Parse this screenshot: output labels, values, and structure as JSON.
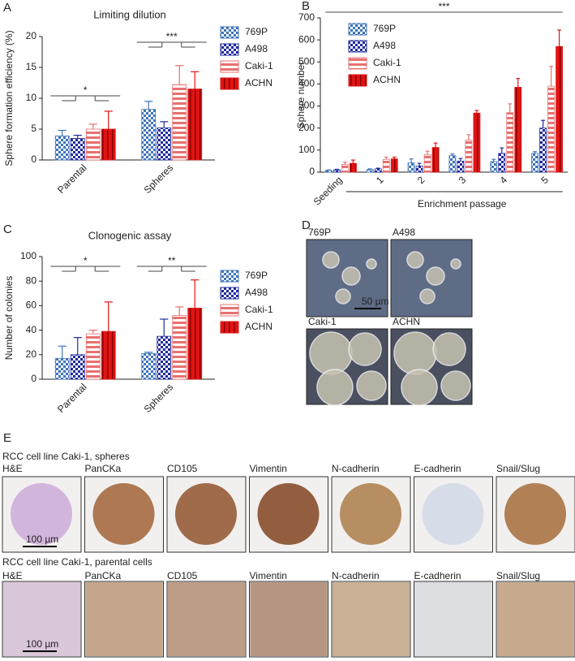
{
  "chart_data": [
    {
      "type": "bar",
      "panel": "A",
      "title": "Limiting dilution",
      "ylabel": "Sphere formation efficiency (%)",
      "categories": [
        "Parental",
        "Spheres"
      ],
      "series": [
        {
          "name": "769P",
          "color": "#3f74b8",
          "hatch": "checker",
          "values": [
            3.9,
            8.2
          ],
          "errors": [
            0.9,
            1.3
          ]
        },
        {
          "name": "A498",
          "color": "#1f2a9e",
          "hatch": "checker",
          "values": [
            3.5,
            5.2
          ],
          "errors": [
            0.5,
            1.0
          ]
        },
        {
          "name": "Caki-1",
          "color": "#e8706f",
          "hatch": "horizontal",
          "values": [
            5.0,
            12.2
          ],
          "errors": [
            0.8,
            3.1
          ]
        },
        {
          "name": "ACHN",
          "color": "#e01414",
          "hatch": "vertical",
          "values": [
            5.0,
            11.5
          ],
          "errors": [
            2.9,
            2.8
          ]
        }
      ],
      "ylim": [
        0,
        20
      ],
      "yticks": [
        0,
        5,
        10,
        15,
        20
      ],
      "annotations": [
        "*",
        "***"
      ]
    },
    {
      "type": "bar",
      "panel": "B",
      "ylabel": "Sphere number",
      "xlabel": "Enrichment passage",
      "categories": [
        "Seeding",
        "1",
        "2",
        "3",
        "4",
        "5"
      ],
      "series": [
        {
          "name": "769P",
          "color": "#3f74b8",
          "hatch": "checker",
          "values": [
            8,
            12,
            42,
            75,
            48,
            85
          ],
          "errors": [
            2,
            3,
            18,
            8,
            10,
            8
          ]
        },
        {
          "name": "A498",
          "color": "#1f2a9e",
          "hatch": "checker",
          "values": [
            10,
            15,
            28,
            50,
            85,
            200
          ],
          "errors": [
            3,
            3,
            12,
            12,
            25,
            35
          ]
        },
        {
          "name": "Caki-1",
          "color": "#e8706f",
          "hatch": "horizontal",
          "values": [
            35,
            58,
            80,
            145,
            270,
            390
          ],
          "errors": [
            10,
            10,
            15,
            25,
            40,
            90
          ]
        },
        {
          "name": "ACHN",
          "color": "#e01414",
          "hatch": "vertical",
          "values": [
            40,
            60,
            112,
            268,
            385,
            570
          ],
          "errors": [
            15,
            8,
            20,
            12,
            40,
            75
          ]
        }
      ],
      "ylim": [
        0,
        700
      ],
      "yticks": [
        0,
        100,
        200,
        300,
        400,
        500,
        600,
        700
      ],
      "annotations": [
        "***"
      ]
    },
    {
      "type": "bar",
      "panel": "C",
      "title": "Clonogenic assay",
      "ylabel": "Number of colonies",
      "categories": [
        "Parental",
        "Spheres"
      ],
      "series": [
        {
          "name": "769P",
          "color": "#3f74b8",
          "hatch": "checker",
          "values": [
            17,
            21
          ],
          "errors": [
            10,
            1
          ]
        },
        {
          "name": "A498",
          "color": "#1f2a9e",
          "hatch": "checker",
          "values": [
            20,
            35
          ],
          "errors": [
            14,
            14
          ]
        },
        {
          "name": "Caki-1",
          "color": "#e8706f",
          "hatch": "horizontal",
          "values": [
            37,
            52
          ],
          "errors": [
            3,
            7
          ]
        },
        {
          "name": "ACHN",
          "color": "#e01414",
          "hatch": "vertical",
          "values": [
            39,
            58
          ],
          "errors": [
            24,
            23
          ]
        }
      ],
      "ylim": [
        0,
        100
      ],
      "yticks": [
        0,
        20,
        40,
        60,
        80,
        100
      ],
      "annotations": [
        "*",
        "**"
      ]
    }
  ],
  "panel_d": {
    "label": "D",
    "images": [
      "769P",
      "A498",
      "Caki-1",
      "ACHN"
    ],
    "scale_bar": "50 µm"
  },
  "panel_e": {
    "label": "E",
    "rows": [
      {
        "title": "RCC cell line Caki-1, spheres",
        "stains": [
          "H&E",
          "PanCKa",
          "CD105",
          "Vimentin",
          "N-cadherin",
          "E-cadherin",
          "Snail/Slug"
        ],
        "scale_bar": "100 µm"
      },
      {
        "title": "RCC cell line Caki-1, parental cells",
        "stains": [
          "H&E",
          "PanCKa",
          "CD105",
          "Vimentin",
          "N-cadherin",
          "E-cadherin",
          "Snail/Slug"
        ],
        "scale_bar": "100 µm"
      }
    ]
  }
}
